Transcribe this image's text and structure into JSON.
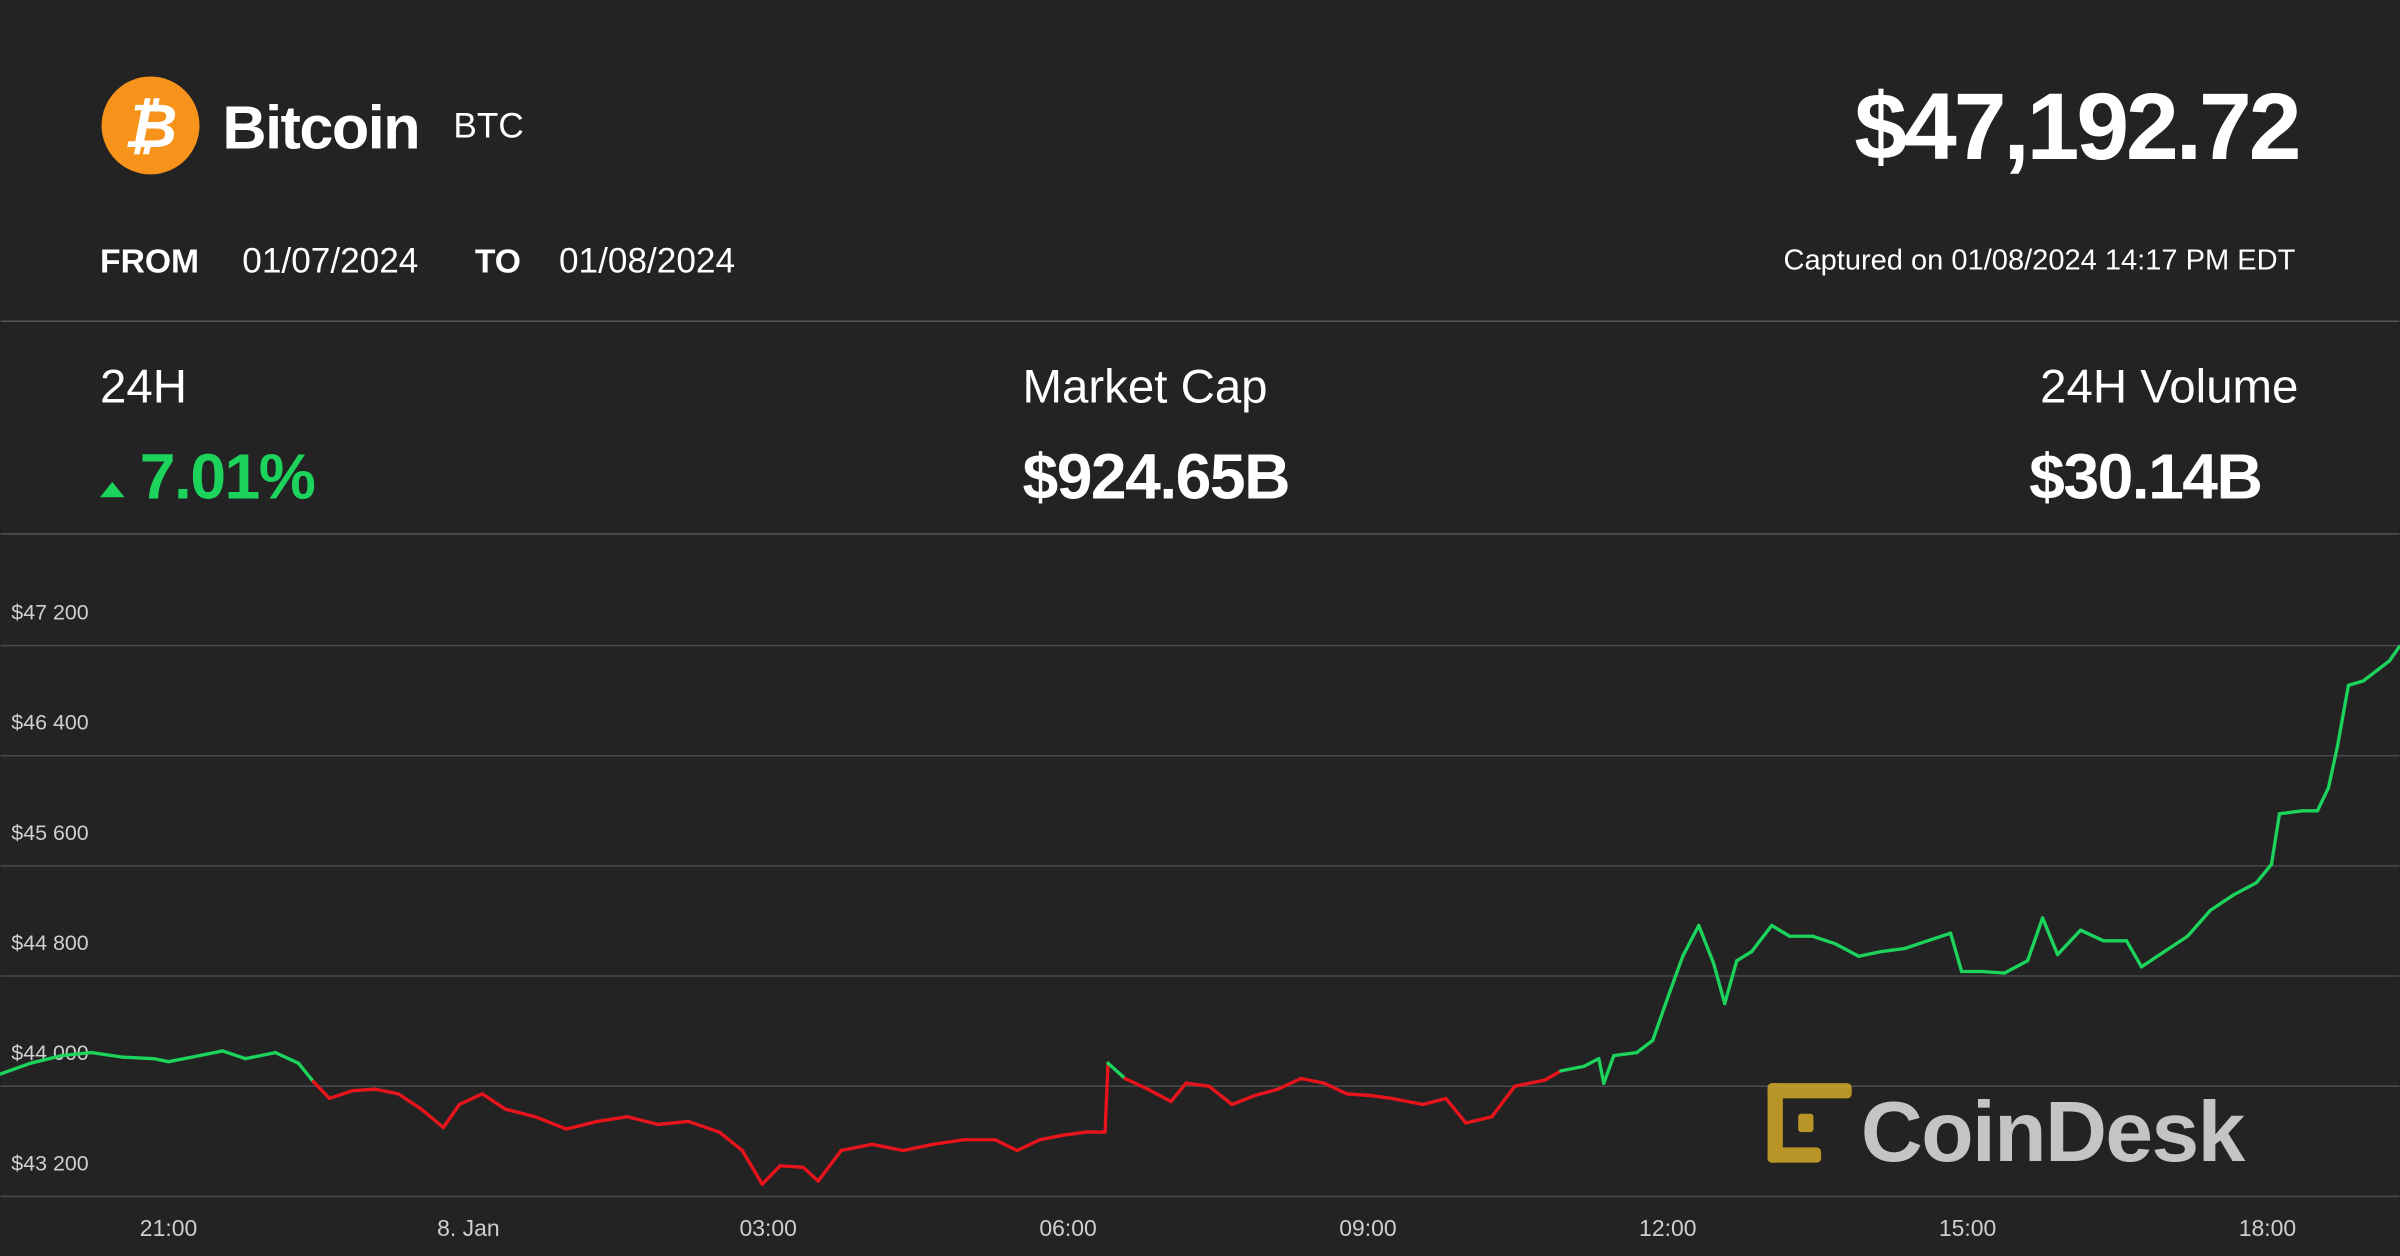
{
  "header": {
    "name": "Bitcoin",
    "symbol": "BTC",
    "price": "$47,192.72",
    "from_label": "FROM",
    "from_date": "01/07/2024",
    "to_label": "TO",
    "to_date": "01/08/2024",
    "captured": "Captured on 01/08/2024 14:17 PM EDT"
  },
  "stats": [
    {
      "label": "24H",
      "value": "7.01%"
    },
    {
      "label": "Market Cap",
      "value": "$924.65B"
    },
    {
      "label": "24H Volume",
      "value": "$30.14B"
    }
  ],
  "watermark": "CoinDesk",
  "chart_data": {
    "type": "line",
    "up_color": "#1cd35c",
    "down_color": "#e8141b",
    "grid": true,
    "xlim": [
      19.32,
      43.32
    ],
    "xticks": [
      {
        "value": 21,
        "label": "21:00"
      },
      {
        "value": 24,
        "label": "8. Jan"
      },
      {
        "value": 27,
        "label": "03:00"
      },
      {
        "value": 30,
        "label": "06:00"
      },
      {
        "value": 33,
        "label": "09:00"
      },
      {
        "value": 36,
        "label": "12:00"
      },
      {
        "value": 39,
        "label": "15:00"
      },
      {
        "value": 42,
        "label": "18:00"
      }
    ],
    "ylim": [
      43200,
      48000
    ],
    "yticks": [
      {
        "value": 43200,
        "label": "$43 200"
      },
      {
        "value": 44000,
        "label": "$44 000"
      },
      {
        "value": 44800,
        "label": "$44 800"
      },
      {
        "value": 45600,
        "label": "$45 600"
      },
      {
        "value": 46400,
        "label": "$46 400"
      },
      {
        "value": 47200,
        "label": "$47 200"
      }
    ],
    "x": [
      19.32,
      19.62,
      19.93,
      20.23,
      20.54,
      20.85,
      21.0,
      21.31,
      21.54,
      21.77,
      22.07,
      22.3,
      22.45,
      22.61,
      22.84,
      23.07,
      23.3,
      23.53,
      23.75,
      23.91,
      24.14,
      24.37,
      24.67,
      24.98,
      25.29,
      25.59,
      25.9,
      26.2,
      26.51,
      26.74,
      26.94,
      27.12,
      27.35,
      27.5,
      27.73,
      28.04,
      28.35,
      28.65,
      28.96,
      29.27,
      29.49,
      29.72,
      29.95,
      30.18,
      30.37,
      30.4,
      30.57,
      30.8,
      31.03,
      31.18,
      31.41,
      31.64,
      31.87,
      32.1,
      32.33,
      32.56,
      32.79,
      33.02,
      33.24,
      33.55,
      33.78,
      33.98,
      34.24,
      34.47,
      34.77,
      34.93,
      35.16,
      35.31,
      35.36,
      35.46,
      35.69,
      35.85,
      36.0,
      36.15,
      36.31,
      36.46,
      36.57,
      36.69,
      36.84,
      37.04,
      37.22,
      37.45,
      37.68,
      37.91,
      38.14,
      38.37,
      38.6,
      38.83,
      38.94,
      39.14,
      39.37,
      39.6,
      39.75,
      39.9,
      40.13,
      40.36,
      40.59,
      40.74,
      40.97,
      41.2,
      41.43,
      41.66,
      41.89,
      42.04,
      42.12,
      42.35,
      42.5,
      42.61,
      42.7,
      42.81,
      42.96,
      43.12,
      43.22,
      43.32
    ],
    "values": [
      44089,
      44167,
      44222,
      44244,
      44211,
      44200,
      44178,
      44222,
      44256,
      44200,
      44244,
      44167,
      44033,
      43911,
      43967,
      43978,
      43944,
      43833,
      43700,
      43867,
      43944,
      43833,
      43778,
      43689,
      43744,
      43778,
      43722,
      43744,
      43667,
      43533,
      43289,
      43422,
      43411,
      43311,
      43533,
      43578,
      43533,
      43578,
      43611,
      43611,
      43533,
      43611,
      43644,
      43667,
      43667,
      44167,
      44056,
      43978,
      43889,
      44022,
      44000,
      43867,
      43933,
      43978,
      44056,
      44022,
      43944,
      43933,
      43911,
      43867,
      43911,
      43733,
      43778,
      44000,
      44044,
      44111,
      44144,
      44200,
      44022,
      44222,
      44244,
      44333,
      44644,
      44944,
      45167,
      44889,
      44600,
      44911,
      44978,
      45167,
      45089,
      45089,
      45033,
      44944,
      44978,
      45000,
      45056,
      45111,
      44833,
      44833,
      44822,
      44911,
      45222,
      44956,
      45133,
      45056,
      45056,
      44867,
      44978,
      45089,
      45278,
      45389,
      45478,
      45611,
      45978,
      46000,
      46000,
      46167,
      46467,
      46911,
      46944,
      47033,
      47089,
      47193
    ]
  }
}
